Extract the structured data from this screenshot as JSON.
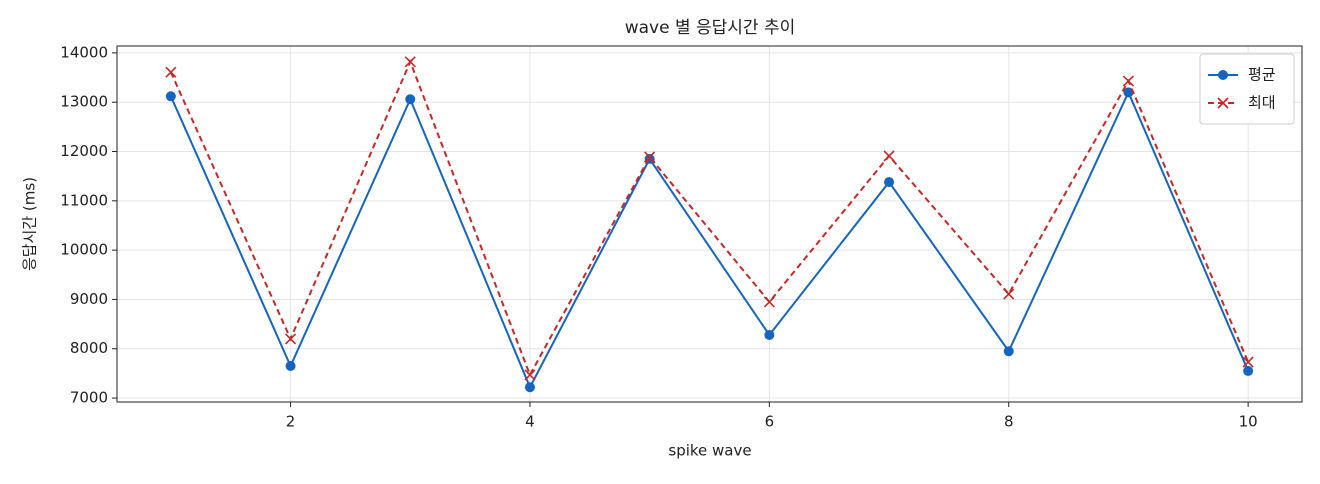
{
  "chart_data": {
    "type": "line",
    "title": "wave 별 응답시간 추이",
    "x_label": "spike wave",
    "y_label": "응답시간 (ms)",
    "x": [
      1,
      2,
      3,
      4,
      5,
      6,
      7,
      8,
      9,
      10
    ],
    "series": [
      {
        "name": "평균",
        "color": "#1565c0",
        "marker": "o",
        "dash": false,
        "values": [
          13120,
          7650,
          13060,
          7220,
          11850,
          8280,
          11380,
          7950,
          13200,
          7550
        ]
      },
      {
        "name": "최대",
        "color": "#c62828",
        "marker": "x",
        "dash": true,
        "values": [
          13610,
          8200,
          13820,
          7470,
          11890,
          8950,
          11910,
          9110,
          13430,
          7730
        ]
      }
    ],
    "xlim": [
      0.55,
      10.45
    ],
    "xticks": [
      2,
      4,
      6,
      8,
      10
    ],
    "ylim": [
      6920,
      14140
    ],
    "yticks": [
      7000,
      8000,
      9000,
      10000,
      11000,
      12000,
      13000,
      14000
    ],
    "grid": true,
    "legend": "upper right"
  }
}
